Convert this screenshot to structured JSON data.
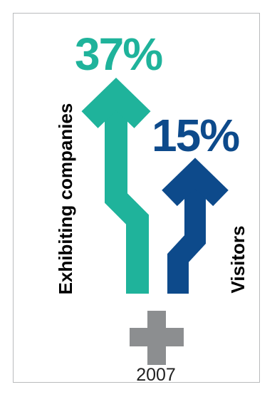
{
  "figure": {
    "companies": {
      "label": "Exhibiting companies",
      "value": "37%",
      "color": "#1fb39b"
    },
    "visitors": {
      "label": "Visitors",
      "value": "15%",
      "color": "#0d4a8b"
    },
    "year": "2007",
    "plus_color": "#8c8e90",
    "icons": {
      "companies_arrow": "up-arrow-icon",
      "visitors_arrow": "up-arrow-icon",
      "base_plus": "plus-icon"
    }
  }
}
